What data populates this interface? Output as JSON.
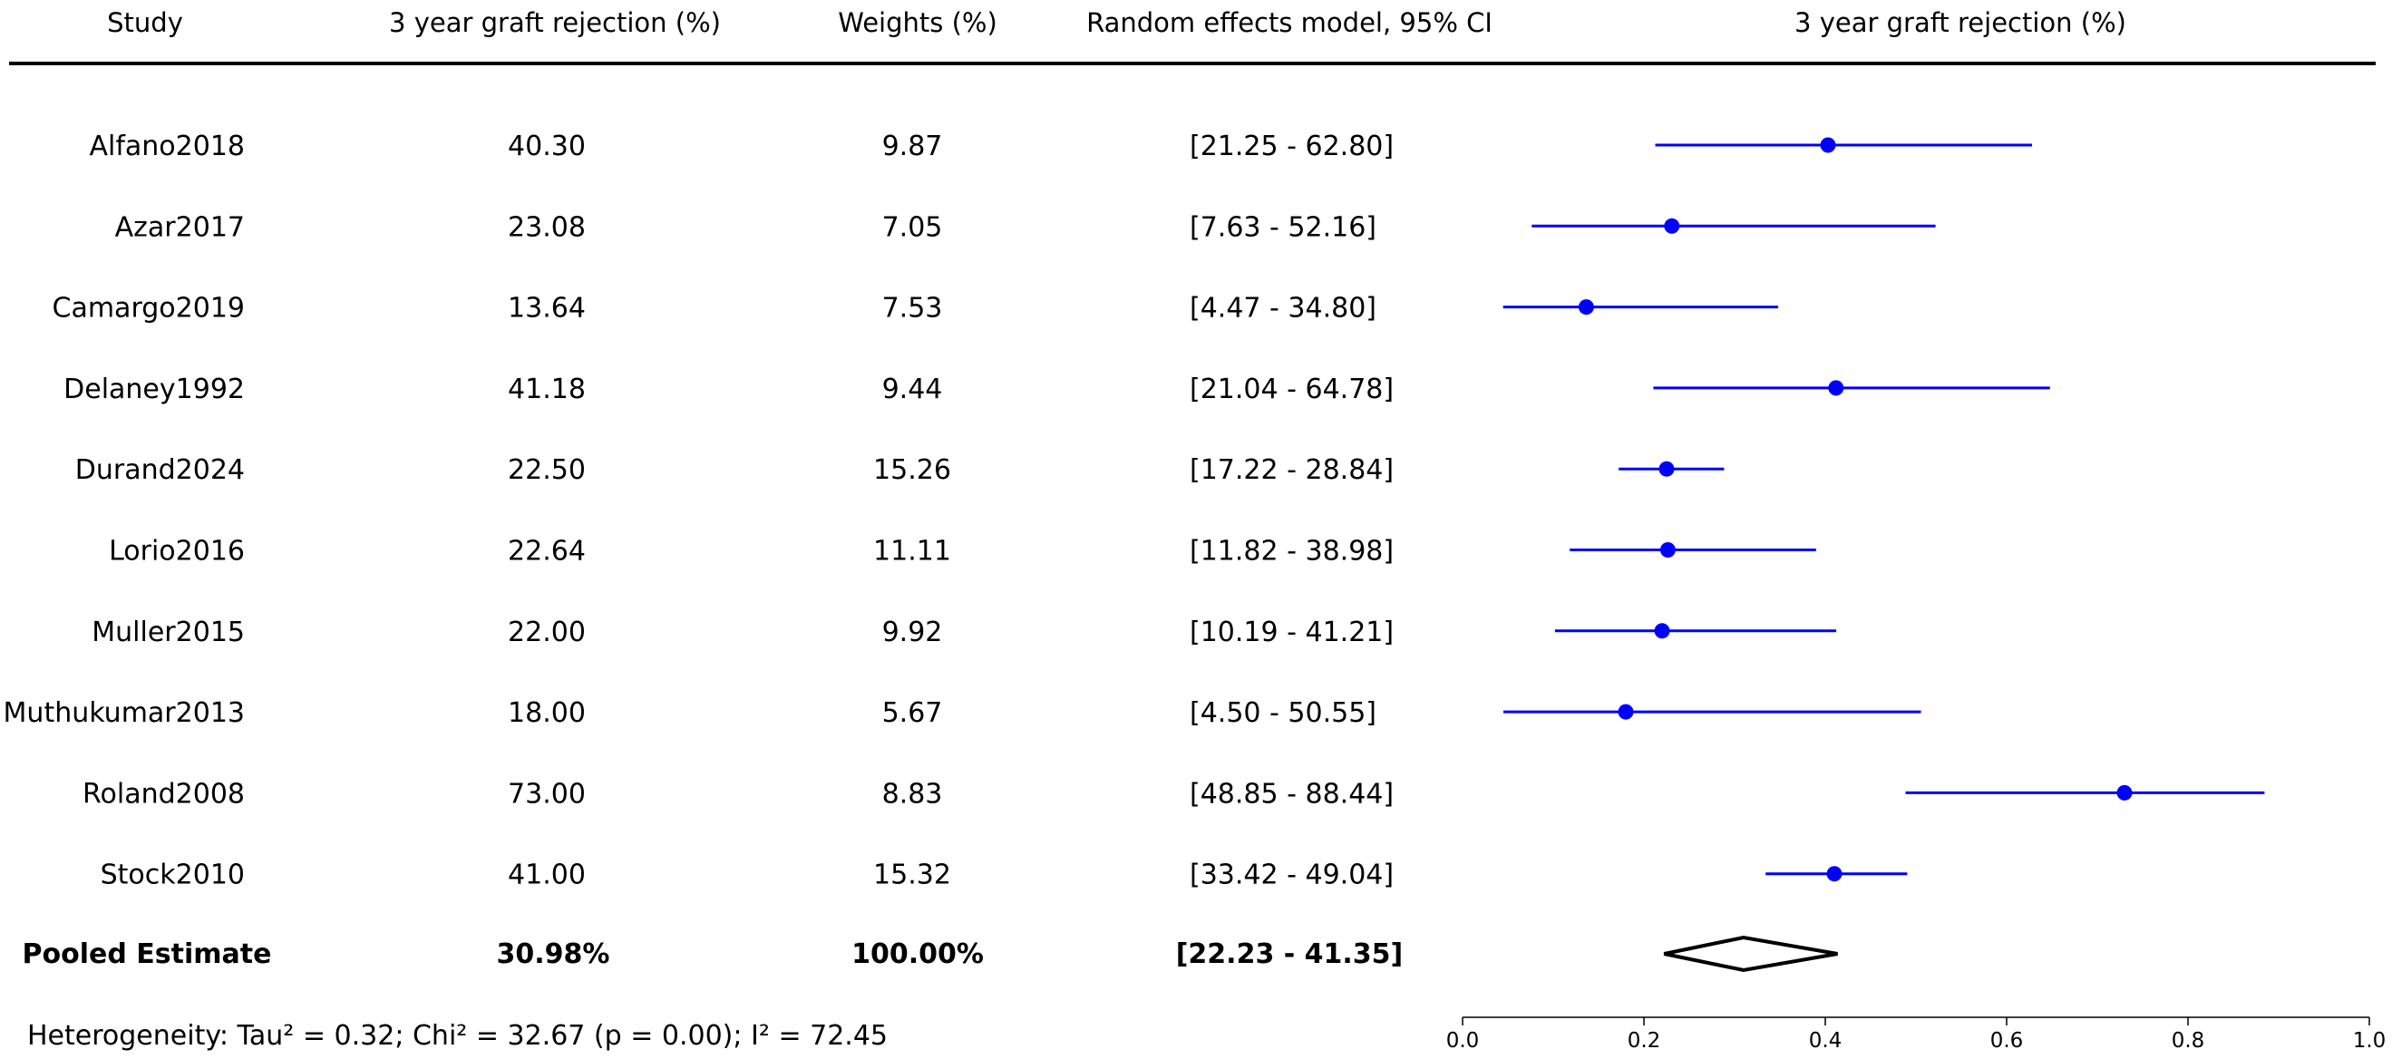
{
  "headers": {
    "study": "Study",
    "rejection": "3 year graft rejection (%)",
    "weights": "Weights (%)",
    "ci": "Random effects model, 95% CI",
    "plot": "3 year graft rejection (%)"
  },
  "rows": [
    {
      "study": "Alfano2018",
      "rejection": "40.30",
      "weight": "9.87",
      "ci": "[21.25 - 62.80]"
    },
    {
      "study": "Azar2017",
      "rejection": "23.08",
      "weight": "7.05",
      "ci": "[7.63 - 52.16]"
    },
    {
      "study": "Camargo2019",
      "rejection": "13.64",
      "weight": "7.53",
      "ci": "[4.47 - 34.80]"
    },
    {
      "study": "Delaney1992",
      "rejection": "41.18",
      "weight": "9.44",
      "ci": "[21.04 - 64.78]"
    },
    {
      "study": "Durand2024",
      "rejection": "22.50",
      "weight": "15.26",
      "ci": "[17.22 - 28.84]"
    },
    {
      "study": "Lorio2016",
      "rejection": "22.64",
      "weight": "11.11",
      "ci": "[11.82 - 38.98]"
    },
    {
      "study": "Muller2015",
      "rejection": "22.00",
      "weight": "9.92",
      "ci": "[10.19 - 41.21]"
    },
    {
      "study": "Muthukumar2013",
      "rejection": "18.00",
      "weight": "5.67",
      "ci": "[4.50 - 50.55]"
    },
    {
      "study": "Roland2008",
      "rejection": "73.00",
      "weight": "8.83",
      "ci": "[48.85 - 88.44]"
    },
    {
      "study": "Stock2010",
      "rejection": "41.00",
      "weight": "15.32",
      "ci": "[33.42 - 49.04]"
    }
  ],
  "pooled": {
    "label": "Pooled Estimate",
    "rejection": "30.98%",
    "weight": "100.00%",
    "ci": "[22.23 - 41.35]"
  },
  "heterogeneity": "Heterogeneity: Tau² = 0.32; Chi² = 32.67 (p = 0.00); I² = 72.45",
  "colors": {
    "marker": "#0000ff",
    "diamond": "#000000"
  },
  "chart_data": {
    "type": "scatter",
    "title": "3 year graft rejection (%)",
    "xlabel": "",
    "ylabel": "",
    "xlim": [
      0.0,
      1.0
    ],
    "xticks": [
      "0.0",
      "0.2",
      "0.4",
      "0.6",
      "0.8",
      "1.0"
    ],
    "grid": false,
    "series": [
      {
        "categories": [
          "Alfano2018",
          "Azar2017",
          "Camargo2019",
          "Delaney1992",
          "Durand2024",
          "Lorio2016",
          "Muller2015",
          "Muthukumar2013",
          "Roland2008",
          "Stock2010"
        ],
        "estimate": [
          0.403,
          0.2308,
          0.1364,
          0.4118,
          0.225,
          0.2264,
          0.22,
          0.18,
          0.73,
          0.41
        ],
        "ci_low": [
          0.2125,
          0.0763,
          0.0447,
          0.2104,
          0.1722,
          0.1182,
          0.1019,
          0.045,
          0.4885,
          0.3342
        ],
        "ci_high": [
          0.628,
          0.5216,
          0.348,
          0.6478,
          0.2884,
          0.3898,
          0.4121,
          0.5055,
          0.8844,
          0.4904
        ]
      }
    ],
    "pooled": {
      "estimate": 0.3098,
      "ci_low": 0.2223,
      "ci_high": 0.4135
    }
  }
}
